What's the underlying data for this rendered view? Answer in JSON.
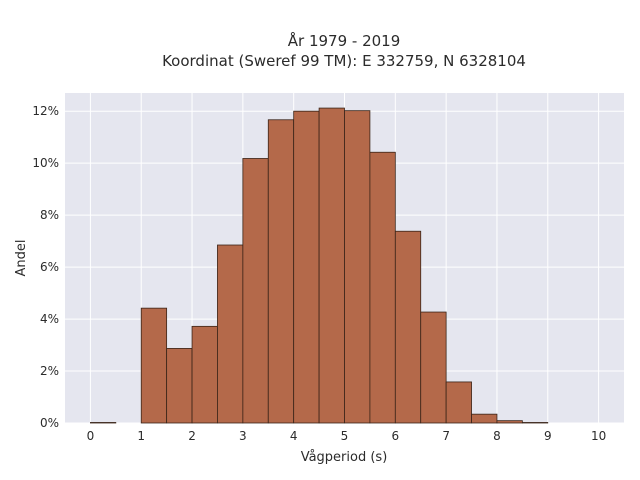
{
  "chart_data": {
    "type": "bar",
    "title_line1": "År 1979 - 2019",
    "title_line2": "Koordinat (Sweref 99 TM): E 332759, N 6328104",
    "xlabel": "Vågperiod (s)",
    "ylabel": "Andel",
    "xlim": [
      -0.5,
      10.5
    ],
    "ylim": [
      0,
      12.7
    ],
    "x_ticks": [
      0,
      1,
      2,
      3,
      4,
      5,
      6,
      7,
      8,
      9,
      10
    ],
    "y_ticks": [
      0,
      2,
      4,
      6,
      8,
      10,
      12
    ],
    "y_tick_suffix": "%",
    "bin_width": 0.5,
    "bins": [
      {
        "x0": 0.0,
        "value": 0.02
      },
      {
        "x0": 0.5,
        "value": 0.0
      },
      {
        "x0": 1.0,
        "value": 4.42
      },
      {
        "x0": 1.5,
        "value": 2.87
      },
      {
        "x0": 2.0,
        "value": 3.72
      },
      {
        "x0": 2.5,
        "value": 6.85
      },
      {
        "x0": 3.0,
        "value": 10.18
      },
      {
        "x0": 3.5,
        "value": 11.67
      },
      {
        "x0": 4.0,
        "value": 12.0
      },
      {
        "x0": 4.5,
        "value": 12.12
      },
      {
        "x0": 5.0,
        "value": 12.02
      },
      {
        "x0": 5.5,
        "value": 10.42
      },
      {
        "x0": 6.0,
        "value": 7.38
      },
      {
        "x0": 6.5,
        "value": 4.27
      },
      {
        "x0": 7.0,
        "value": 1.58
      },
      {
        "x0": 7.5,
        "value": 0.34
      },
      {
        "x0": 8.0,
        "value": 0.09
      },
      {
        "x0": 8.5,
        "value": 0.02
      }
    ],
    "grid": true,
    "colors": {
      "bar": "#b4694a",
      "plot_background": "#e5e6ef",
      "grid": "#ffffff"
    }
  }
}
